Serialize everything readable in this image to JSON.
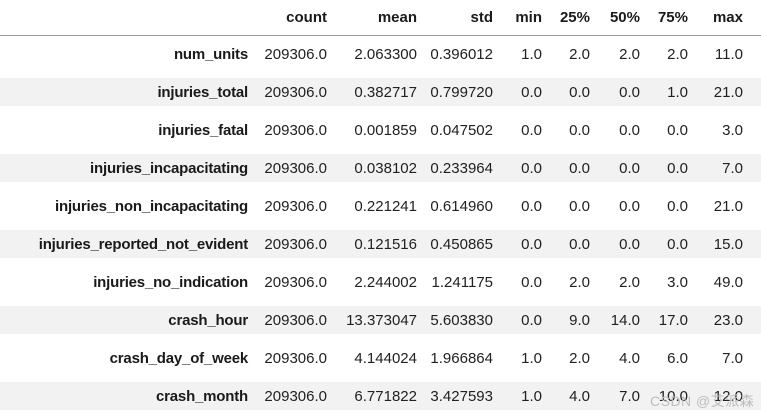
{
  "colors": {
    "background": "#ffffff",
    "stripe": "#f2f2f2",
    "header_border": "#999999",
    "text": "#212121",
    "label_text": "#1a1a1a",
    "watermark_color": "#bdbdbd"
  },
  "watermark": {
    "text": "CSDN @艾派森"
  },
  "chart_data": {
    "type": "table",
    "columns": [
      "count",
      "mean",
      "std",
      "min",
      "25%",
      "50%",
      "75%",
      "max"
    ],
    "index_header": "",
    "rows": [
      {
        "index": "num_units",
        "values": [
          "209306.0",
          "2.063300",
          "0.396012",
          "1.0",
          "2.0",
          "2.0",
          "2.0",
          "11.0"
        ]
      },
      {
        "index": "injuries_total",
        "values": [
          "209306.0",
          "0.382717",
          "0.799720",
          "0.0",
          "0.0",
          "0.0",
          "1.0",
          "21.0"
        ]
      },
      {
        "index": "injuries_fatal",
        "values": [
          "209306.0",
          "0.001859",
          "0.047502",
          "0.0",
          "0.0",
          "0.0",
          "0.0",
          "3.0"
        ]
      },
      {
        "index": "injuries_incapacitating",
        "values": [
          "209306.0",
          "0.038102",
          "0.233964",
          "0.0",
          "0.0",
          "0.0",
          "0.0",
          "7.0"
        ]
      },
      {
        "index": "injuries_non_incapacitating",
        "values": [
          "209306.0",
          "0.221241",
          "0.614960",
          "0.0",
          "0.0",
          "0.0",
          "0.0",
          "21.0"
        ]
      },
      {
        "index": "injuries_reported_not_evident",
        "values": [
          "209306.0",
          "0.121516",
          "0.450865",
          "0.0",
          "0.0",
          "0.0",
          "0.0",
          "15.0"
        ]
      },
      {
        "index": "injuries_no_indication",
        "values": [
          "209306.0",
          "2.244002",
          "1.241175",
          "0.0",
          "2.0",
          "2.0",
          "3.0",
          "49.0"
        ]
      },
      {
        "index": "crash_hour",
        "values": [
          "209306.0",
          "13.373047",
          "5.603830",
          "0.0",
          "9.0",
          "14.0",
          "17.0",
          "23.0"
        ]
      },
      {
        "index": "crash_day_of_week",
        "values": [
          "209306.0",
          "4.144024",
          "1.966864",
          "1.0",
          "2.0",
          "4.0",
          "6.0",
          "7.0"
        ]
      },
      {
        "index": "crash_month",
        "values": [
          "209306.0",
          "6.771822",
          "3.427593",
          "1.0",
          "4.0",
          "7.0",
          "10.0",
          "12.0"
        ]
      }
    ]
  }
}
